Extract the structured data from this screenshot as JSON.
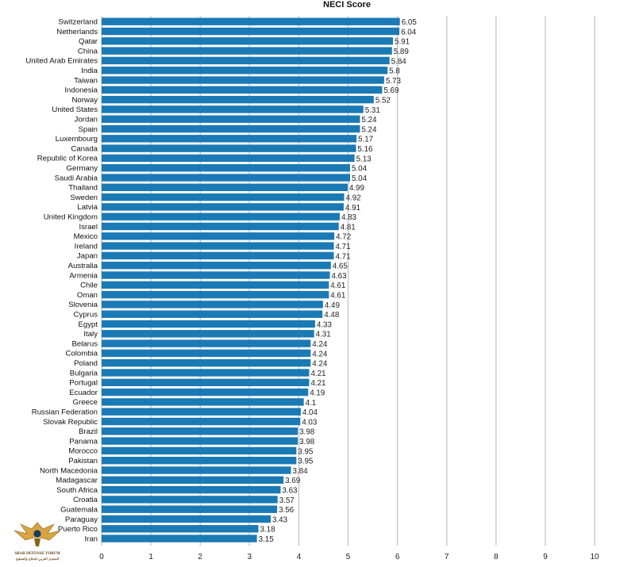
{
  "chart_data": {
    "type": "bar",
    "orientation": "horizontal",
    "title": "NECI Score",
    "xlabel": "",
    "ylabel": "",
    "xlim": [
      0,
      10
    ],
    "x_ticks": [
      "0",
      "1",
      "2",
      "3",
      "4",
      "5",
      "6",
      "7",
      "8",
      "9",
      "10"
    ],
    "grid": true,
    "bar_color": "#1a7ab5",
    "grid_color": "#c8c8c8",
    "categories": [
      "Switzerland",
      "Netherlands",
      "Qatar",
      "China",
      "United Arab Emirates",
      "India",
      "Taiwan",
      "Indonesia",
      "Norway",
      "United States",
      "Jordan",
      "Spain",
      "Luxembourg",
      "Canada",
      "Republic of Korea",
      "Germany",
      "Saudi Arabia",
      "Thailand",
      "Sweden",
      "Latvia",
      "United Kingdom",
      "Israel",
      "Mexico",
      "Ireland",
      "Japan",
      "Australia",
      "Armenia",
      "Chile",
      "Oman",
      "Slovenia",
      "Cyprus",
      "Egypt",
      "Italy",
      "Belarus",
      "Colombia",
      "Poland",
      "Bulgaria",
      "Portugal",
      "Ecuador",
      "Greece",
      "Russian Federation",
      "Slovak Republic",
      "Brazil",
      "Panama",
      "Morocco",
      "Pakistan",
      "North Macedonia",
      "Madagascar",
      "South Africa",
      "Croatia",
      "Guatemala",
      "Paraguay",
      "Puerto Rico",
      "Iran"
    ],
    "values": [
      6.05,
      6.04,
      5.91,
      5.89,
      5.84,
      5.8,
      5.73,
      5.69,
      5.52,
      5.31,
      5.24,
      5.24,
      5.17,
      5.16,
      5.13,
      5.04,
      5.04,
      4.99,
      4.92,
      4.91,
      4.83,
      4.81,
      4.72,
      4.71,
      4.71,
      4.65,
      4.63,
      4.61,
      4.61,
      4.49,
      4.48,
      4.33,
      4.31,
      4.24,
      4.24,
      4.24,
      4.21,
      4.21,
      4.19,
      4.1,
      4.04,
      4.03,
      3.98,
      3.98,
      3.95,
      3.95,
      3.84,
      3.69,
      3.63,
      3.57,
      3.56,
      3.43,
      3.18,
      3.15
    ],
    "value_labels": [
      "6.05",
      "6.04",
      "5.91",
      "5.89",
      "5.84",
      "5.8",
      "5.73",
      "5.69",
      "5.52",
      "5.31",
      "5.24",
      "5.24",
      "5.17",
      "5.16",
      "5.13",
      "5.04",
      "5.04",
      "4.99",
      "4.92",
      "4.91",
      "4.83",
      "4.81",
      "4.72",
      "4.71",
      "4.71",
      "4.65",
      "4.63",
      "4.61",
      "4.61",
      "4.49",
      "4.48",
      "4.33",
      "4.31",
      "4.24",
      "4.24",
      "4.24",
      "4.21",
      "4.21",
      "4.19",
      "4.1",
      "4.04",
      "4.03",
      "3.98",
      "3.98",
      "3.95",
      "3.95",
      "3.84",
      "3.69",
      "3.63",
      "3.57",
      "3.56",
      "3.43",
      "3.18",
      "3.15"
    ]
  },
  "watermark": {
    "line1": "ARAB DEFENSE FORUM",
    "line2": "المنتدى العربي للدفاع والتسليح"
  }
}
